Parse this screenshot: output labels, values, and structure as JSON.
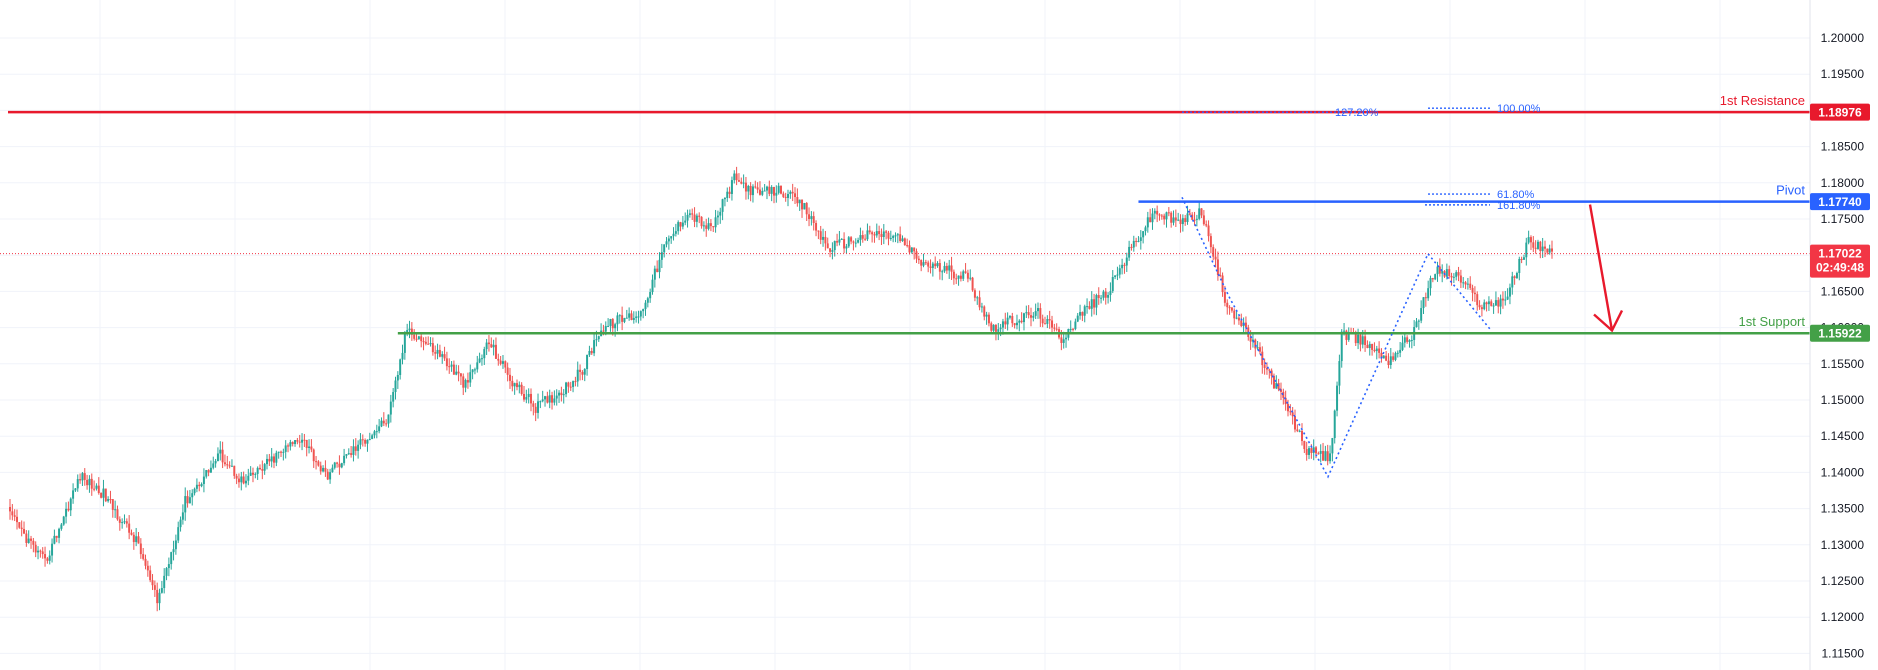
{
  "chart_data": {
    "type": "candlestick",
    "price_axis": {
      "min": 1.115,
      "max": 1.2,
      "ticks": [
        "1.20000",
        "1.19500",
        "1.19000",
        "1.18500",
        "1.18000",
        "1.17500",
        "1.17000",
        "1.16500",
        "1.16000",
        "1.15500",
        "1.15000",
        "1.14500",
        "1.14000",
        "1.13500",
        "1.13000",
        "1.12500",
        "1.12000",
        "1.11500"
      ]
    },
    "levels": [
      {
        "name": "1st Resistance",
        "value": 1.18976,
        "label": "1.18976",
        "color": "#e8192c"
      },
      {
        "name": "Pivot",
        "value": 1.1774,
        "label": "1.17740",
        "color": "#2962ff"
      },
      {
        "name": "1st Support",
        "value": 1.15922,
        "label": "1.15922",
        "color": "#43a047"
      }
    ],
    "current_price": {
      "label": "1.17022",
      "countdown": "02:49:48",
      "value": 1.17022,
      "color": "#f23645"
    },
    "fib_labels": [
      {
        "text": "127.20%",
        "price": 1.18976
      },
      {
        "text": "100.00%",
        "price": 1.1903
      },
      {
        "text": "61.80%",
        "price": 1.17845
      },
      {
        "text": "161.80%",
        "price": 1.17695
      }
    ],
    "harmonic_pattern_prices": [
      1.178,
      1.164,
      1.1394,
      1.1702,
      1.1598,
      1.1774
    ],
    "projection_arrow": {
      "from_price": 1.177,
      "to_price": 1.1596
    },
    "colors": {
      "up": "#26a69a",
      "down": "#ef5350",
      "grid": "#f0f3fa",
      "dotted": "#2962ff"
    },
    "anchors": [
      [
        0,
        1.134
      ],
      [
        15,
        1.1275
      ],
      [
        30,
        1.1395
      ],
      [
        40,
        1.137
      ],
      [
        55,
        1.13
      ],
      [
        63,
        1.122
      ],
      [
        75,
        1.136
      ],
      [
        90,
        1.1425
      ],
      [
        100,
        1.1385
      ],
      [
        115,
        1.1425
      ],
      [
        125,
        1.145
      ],
      [
        135,
        1.1395
      ],
      [
        150,
        1.144
      ],
      [
        162,
        1.1475
      ],
      [
        170,
        1.16
      ],
      [
        185,
        1.156
      ],
      [
        195,
        1.152
      ],
      [
        205,
        1.158
      ],
      [
        215,
        1.1525
      ],
      [
        225,
        1.149
      ],
      [
        235,
        1.151
      ],
      [
        245,
        1.154
      ],
      [
        252,
        1.1595
      ],
      [
        260,
        1.161
      ],
      [
        270,
        1.162
      ],
      [
        280,
        1.171
      ],
      [
        290,
        1.176
      ],
      [
        300,
        1.1735
      ],
      [
        310,
        1.1805
      ],
      [
        320,
        1.1785
      ],
      [
        330,
        1.179
      ],
      [
        340,
        1.1765
      ],
      [
        350,
        1.171
      ],
      [
        360,
        1.172
      ],
      [
        370,
        1.173
      ],
      [
        380,
        1.1725
      ],
      [
        390,
        1.169
      ],
      [
        400,
        1.168
      ],
      [
        410,
        1.167
      ],
      [
        420,
        1.16
      ],
      [
        430,
        1.161
      ],
      [
        440,
        1.162
      ],
      [
        450,
        1.1585
      ],
      [
        460,
        1.1625
      ],
      [
        470,
        1.165
      ],
      [
        480,
        1.171
      ],
      [
        490,
        1.176
      ],
      [
        500,
        1.1745
      ],
      [
        510,
        1.176
      ],
      [
        520,
        1.164
      ],
      [
        530,
        1.159
      ],
      [
        545,
        1.15
      ],
      [
        555,
        1.143
      ],
      [
        565,
        1.142
      ],
      [
        570,
        1.159
      ],
      [
        580,
        1.158
      ],
      [
        590,
        1.1555
      ],
      [
        600,
        1.159
      ],
      [
        610,
        1.168
      ],
      [
        620,
        1.167
      ],
      [
        630,
        1.163
      ],
      [
        640,
        1.164
      ],
      [
        650,
        1.172
      ],
      [
        660,
        1.1705
      ]
    ]
  }
}
